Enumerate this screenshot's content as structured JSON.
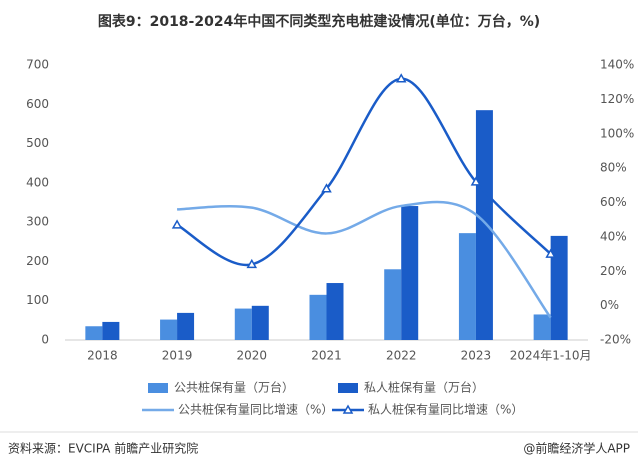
{
  "chart_data": {
    "type": "bar-line",
    "title": "图表9：2018-2024年中国不同类型充电桩建设情况(单位：万台，%)",
    "categories": [
      "2018",
      "2019",
      "2020",
      "2021",
      "2022",
      "2023",
      "2024年1-10月"
    ],
    "series": [
      {
        "name": "公共桩保有量（万台）",
        "type": "bar",
        "color": "#4a8ee0",
        "values": [
          35,
          52,
          80,
          115,
          180,
          272,
          65
        ]
      },
      {
        "name": "私人桩保有量（万台）",
        "type": "bar",
        "color": "#1a5cc8",
        "values": [
          46,
          69,
          87,
          145,
          341,
          585,
          265
        ]
      },
      {
        "name": "公共桩保有量同比增速（%）",
        "type": "line",
        "axis": "y2",
        "color": "#74aae8",
        "values": [
          null,
          56,
          57,
          42,
          58,
          53,
          -7
        ]
      },
      {
        "name": "私人桩保有量同比增速（%）",
        "type": "line",
        "axis": "y2",
        "color": "#1a5cc8",
        "marker": "triangle",
        "values": [
          null,
          47,
          24,
          68,
          132,
          72,
          30
        ]
      }
    ],
    "ylim": [
      0,
      700
    ],
    "yticks": [
      0,
      100,
      200,
      300,
      400,
      500,
      600,
      700
    ],
    "y2lim": [
      -20,
      140
    ],
    "y2ticks": [
      {
        "value": -20,
        "label": "-20%"
      },
      {
        "value": 0,
        "label": "0%"
      },
      {
        "value": 20,
        "label": "20%"
      },
      {
        "value": 40,
        "label": "40%"
      },
      {
        "value": 60,
        "label": "60%"
      },
      {
        "value": 80,
        "label": "80%"
      },
      {
        "value": 100,
        "label": "100%"
      },
      {
        "value": 120,
        "label": "120%"
      },
      {
        "value": 140,
        "label": "140%"
      }
    ],
    "grid": false,
    "legend": "bottom",
    "source": "资料来源：EVCIPA 前瞻产业研究院",
    "credit": "@前瞻经济学人APP"
  }
}
